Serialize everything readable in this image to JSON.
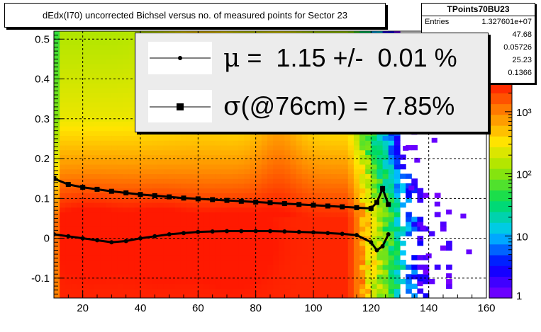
{
  "title": "dEdx(I70) uncorrected Bichsel versus no. of measured points for Sector 23",
  "stats": {
    "name": "TPoints70BU23",
    "rows": [
      {
        "key": "Entries",
        "value": "1.327601e+07"
      },
      {
        "key": "",
        "value": "47.68"
      },
      {
        "key": "",
        "value": "0.05726"
      },
      {
        "key": "",
        "value": "25.23"
      },
      {
        "key": "",
        "value": "0.1366"
      }
    ]
  },
  "legend": {
    "mu_symbol": "μ",
    "mu_text": " =  1.15 +/-  0.01 %",
    "sigma_symbol": "σ",
    "sigma_text": "(@76cm) =  7.85%"
  },
  "colors": {
    "frame": "#000000",
    "legend_bg": "#ececec",
    "markers": "#000000"
  },
  "chart_data": {
    "type": "heatmap",
    "xlim": [
      10,
      160
    ],
    "ylim": [
      -0.15,
      0.52
    ],
    "x_ticks": [
      20,
      40,
      60,
      80,
      100,
      120,
      140,
      160
    ],
    "y_ticks": [
      -0.1,
      0,
      0.1,
      0.2,
      0.3,
      0.4,
      0.5
    ],
    "x_tick_labels": [
      "20",
      "40",
      "60",
      "80",
      "100",
      "120",
      "140",
      "160"
    ],
    "y_tick_labels": [
      "-0.1",
      "0",
      "0.1",
      "0.2",
      "0.3",
      "0.4",
      "0.5"
    ],
    "grid": true,
    "z_scale": "log",
    "z_range": [
      1,
      3000
    ],
    "colorbar_ticks": [
      1,
      10,
      100,
      1000
    ],
    "colorbar_labels": [
      "1",
      "10",
      "10²",
      "10³"
    ],
    "series": [
      {
        "marker": "square",
        "x": [
          10,
          15,
          20,
          25,
          30,
          35,
          40,
          45,
          50,
          55,
          60,
          65,
          70,
          75,
          80,
          85,
          90,
          95,
          100,
          105,
          110,
          115,
          120,
          122,
          124,
          126
        ],
        "y": [
          0.15,
          0.135,
          0.128,
          0.123,
          0.118,
          0.114,
          0.11,
          0.107,
          0.104,
          0.101,
          0.099,
          0.097,
          0.095,
          0.093,
          0.091,
          0.089,
          0.087,
          0.085,
          0.083,
          0.081,
          0.079,
          0.077,
          0.075,
          0.09,
          0.125,
          0.085
        ]
      },
      {
        "marker": "circle",
        "x": [
          10,
          15,
          20,
          25,
          30,
          35,
          40,
          45,
          50,
          55,
          60,
          65,
          70,
          75,
          80,
          85,
          90,
          95,
          100,
          105,
          110,
          115,
          120,
          122,
          124,
          126
        ],
        "y": [
          0.01,
          0.005,
          0.0,
          -0.005,
          -0.01,
          -0.007,
          0.0,
          0.005,
          0.01,
          0.013,
          0.016,
          0.017,
          0.018,
          0.018,
          0.018,
          0.018,
          0.017,
          0.016,
          0.015,
          0.013,
          0.011,
          0.008,
          -0.01,
          -0.03,
          -0.02,
          0.01
        ]
      }
    ]
  }
}
